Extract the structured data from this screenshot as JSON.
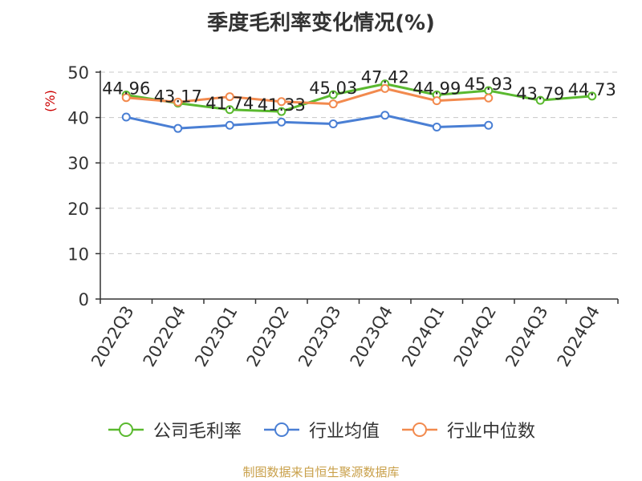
{
  "title": "季度毛利率变化情况(%)",
  "source": "制图数据来自恒生聚源数据库",
  "chart_data": {
    "type": "line",
    "title": "季度毛利率变化情况(%)",
    "ylabel": "(%)",
    "xlabel": "",
    "ylim": [
      0,
      50
    ],
    "yticks": [
      0,
      10,
      20,
      30,
      40,
      50
    ],
    "grid": true,
    "legend_position": "bottom",
    "categories": [
      "2022Q3",
      "2022Q4",
      "2023Q1",
      "2023Q2",
      "2023Q3",
      "2023Q4",
      "2024Q1",
      "2024Q2",
      "2024Q3",
      "2024Q4"
    ],
    "series": [
      {
        "name": "公司毛利率",
        "color": "#5ab92f",
        "values": [
          44.96,
          43.17,
          41.74,
          41.33,
          45.03,
          47.42,
          44.99,
          45.93,
          43.79,
          44.73
        ],
        "labels": [
          "44.96",
          "43.17",
          "41.74",
          "41.33",
          "45.03",
          "47.42",
          "44.99",
          "45.93",
          "43.79",
          "44.73"
        ]
      },
      {
        "name": "行业均值",
        "color": "#4a7fd4",
        "values": [
          40.1,
          37.6,
          38.3,
          39.0,
          38.6,
          40.5,
          37.9,
          38.3,
          null,
          null
        ]
      },
      {
        "name": "行业中位数",
        "color": "#f28a4e",
        "values": [
          44.4,
          43.4,
          44.6,
          43.5,
          43.0,
          46.4,
          43.7,
          44.3,
          null,
          null
        ]
      }
    ]
  }
}
